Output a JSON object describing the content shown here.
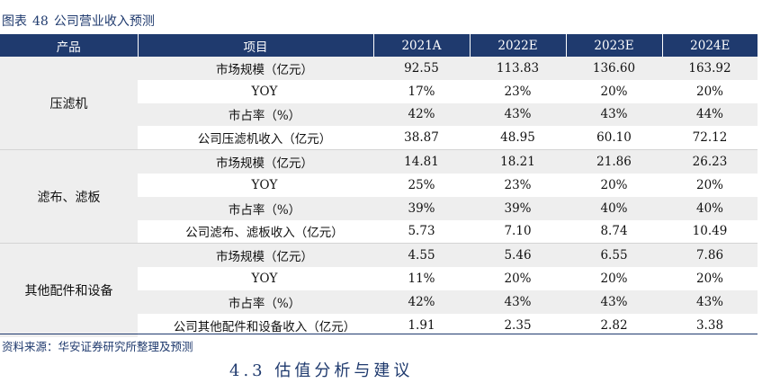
{
  "caption": {
    "prefix": "图表",
    "number": "48",
    "title": "公司营业收入预测"
  },
  "table": {
    "headers": [
      "产品",
      "项目",
      "2021A",
      "2022E",
      "2023E",
      "2024E"
    ],
    "groups": [
      {
        "name": "压滤机",
        "rows": [
          {
            "item": "市场规模（亿元）",
            "values": [
              "92.55",
              "113.83",
              "136.60",
              "163.92"
            ]
          },
          {
            "item": "YOY",
            "values": [
              "17%",
              "23%",
              "20%",
              "20%"
            ]
          },
          {
            "item": "市占率（%）",
            "values": [
              "42%",
              "43%",
              "43%",
              "44%"
            ]
          },
          {
            "item": "公司压滤机收入（亿元）",
            "values": [
              "38.87",
              "48.95",
              "60.10",
              "72.12"
            ]
          }
        ]
      },
      {
        "name": "滤布、滤板",
        "rows": [
          {
            "item": "市场规模（亿元）",
            "values": [
              "14.81",
              "18.21",
              "21.86",
              "26.23"
            ]
          },
          {
            "item": "YOY",
            "values": [
              "25%",
              "23%",
              "20%",
              "20%"
            ]
          },
          {
            "item": "市占率（%）",
            "values": [
              "39%",
              "39%",
              "40%",
              "40%"
            ]
          },
          {
            "item": "公司滤布、滤板收入（亿元）",
            "values": [
              "5.73",
              "7.10",
              "8.74",
              "10.49"
            ]
          }
        ]
      },
      {
        "name": "其他配件和设备",
        "rows": [
          {
            "item": "市场规模（亿元）",
            "values": [
              "4.55",
              "5.46",
              "6.55",
              "7.86"
            ]
          },
          {
            "item": "YOY",
            "values": [
              "11%",
              "20%",
              "20%",
              "20%"
            ]
          },
          {
            "item": "市占率（%）",
            "values": [
              "42%",
              "43%",
              "43%",
              "43%"
            ]
          },
          {
            "item": "公司其他配件和设备收入（亿元）",
            "values": [
              "1.91",
              "2.35",
              "2.82",
              "3.38"
            ]
          }
        ]
      }
    ]
  },
  "source": "资料来源：华安证券研究所整理及预测",
  "cutoff_heading": "4.3 估值分析与建议"
}
